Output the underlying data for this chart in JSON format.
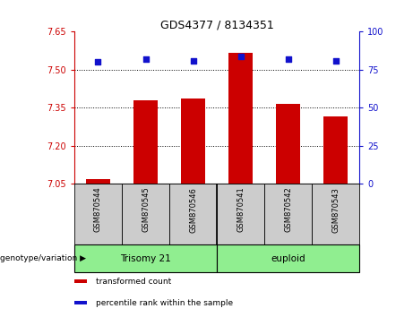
{
  "title": "GDS4377 / 8134351",
  "samples": [
    "GSM870544",
    "GSM870545",
    "GSM870546",
    "GSM870541",
    "GSM870542",
    "GSM870543"
  ],
  "transformed_counts": [
    7.07,
    7.38,
    7.385,
    7.565,
    7.365,
    7.315
  ],
  "percentile_ranks": [
    80,
    82,
    81,
    84,
    82,
    81
  ],
  "ylim_left": [
    7.05,
    7.65
  ],
  "yticks_left": [
    7.05,
    7.2,
    7.35,
    7.5,
    7.65
  ],
  "ylim_right": [
    0,
    100
  ],
  "yticks_right": [
    0,
    25,
    50,
    75,
    100
  ],
  "bar_color": "#cc0000",
  "dot_color": "#1111cc",
  "groups": [
    {
      "label": "Trisomy 21",
      "span": [
        0,
        3
      ]
    },
    {
      "label": "euploid",
      "span": [
        3,
        6
      ]
    }
  ],
  "group_color": "#90EE90",
  "legend_items": [
    {
      "label": "transformed count",
      "color": "#cc0000"
    },
    {
      "label": "percentile rank within the sample",
      "color": "#1111cc"
    }
  ],
  "genotype_label": "genotype/variation",
  "tick_label_color_left": "#cc0000",
  "tick_label_color_right": "#1111cc",
  "background_color": "#ffffff",
  "xticklabel_bg": "#cccccc",
  "title_fontsize": 9
}
